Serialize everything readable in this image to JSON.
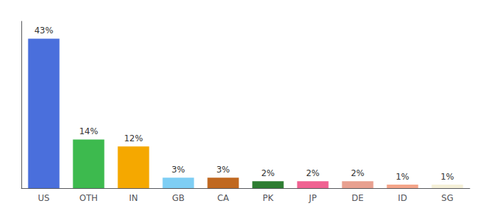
{
  "chart_data": {
    "type": "bar",
    "categories": [
      "US",
      "OTH",
      "IN",
      "GB",
      "CA",
      "PK",
      "JP",
      "DE",
      "ID",
      "SG"
    ],
    "values": [
      43,
      14,
      12,
      3,
      3,
      2,
      2,
      2,
      1,
      1
    ],
    "value_labels": [
      "43%",
      "14%",
      "12%",
      "3%",
      "3%",
      "2%",
      "2%",
      "2%",
      "1%",
      "1%"
    ],
    "colors": [
      "#4a6fdc",
      "#3dba4e",
      "#f5a800",
      "#7ecef4",
      "#c06820",
      "#2e7d32",
      "#f06292",
      "#e8a090",
      "#f4a58a",
      "#f5f0d8"
    ],
    "ylim": [
      0,
      48
    ],
    "grid": false,
    "data_labels": true,
    "tick_labels": "x"
  }
}
